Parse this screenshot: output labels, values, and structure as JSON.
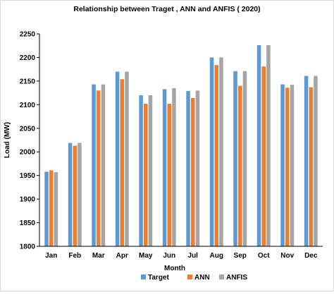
{
  "chart_data": {
    "type": "bar",
    "title": "Relationship between Traget , ANN and ANFIS ( 2020)",
    "xlabel": "Month",
    "ylabel": "Load (MW)",
    "ylim": [
      1800,
      2250
    ],
    "yticks": [
      1800,
      1850,
      1900,
      1950,
      2000,
      2050,
      2100,
      2150,
      2200,
      2250
    ],
    "grid": false,
    "legend_position": "bottom",
    "categories": [
      "Jan",
      "Feb",
      "Mar",
      "Apr",
      "May",
      "Jun",
      "Jul",
      "Aug",
      "Sep",
      "Oct",
      "Nov",
      "Dec"
    ],
    "series": [
      {
        "name": "Target",
        "color": "#5b9bd5",
        "values": [
          1958,
          2019,
          2143,
          2170,
          2120,
          2133,
          2129,
          2200,
          2171,
          2226,
          2143,
          2161
        ]
      },
      {
        "name": "ANN",
        "color": "#ed7d31",
        "values": [
          1961,
          2013,
          2130,
          2154,
          2102,
          2102,
          2114,
          2184,
          2140,
          2181,
          2136,
          2137
        ]
      },
      {
        "name": "ANFIS",
        "color": "#a5a5a5",
        "values": [
          1957,
          2019,
          2143,
          2170,
          2120,
          2135,
          2130,
          2200,
          2171,
          2226,
          2142,
          2161
        ]
      }
    ]
  }
}
